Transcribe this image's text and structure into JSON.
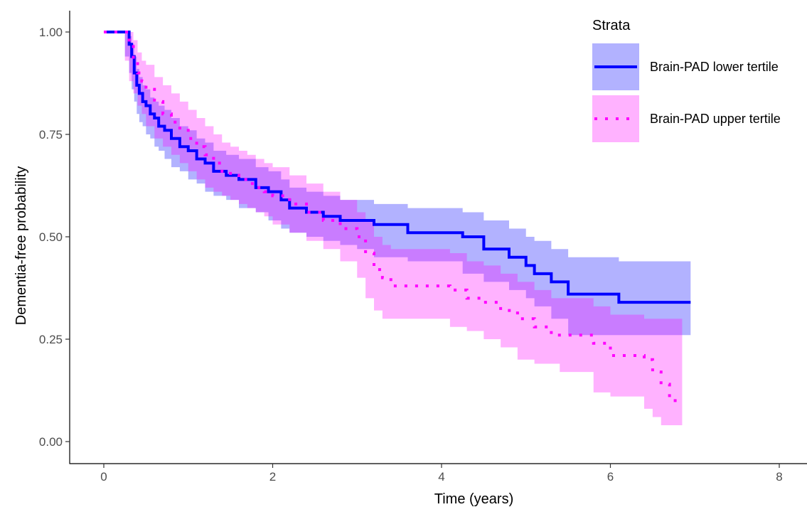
{
  "chart_data": {
    "type": "line",
    "subtype": "kaplan-meier survival curve with confidence bands",
    "xlabel": "Time (years)",
    "ylabel": "Dementia-free probability",
    "xlim": [
      0,
      8
    ],
    "ylim": [
      0,
      1
    ],
    "x_ticks": [
      0,
      2,
      4,
      6,
      8
    ],
    "x_tick_labels": [
      "0",
      "2",
      "4",
      "6",
      "8"
    ],
    "y_ticks": [
      0,
      0.25,
      0.5,
      0.75,
      1.0
    ],
    "y_tick_labels": [
      "0.00",
      "0.25",
      "0.50",
      "0.75",
      "1.00"
    ],
    "grid": false,
    "legend": {
      "title": "Strata",
      "position": "top-right"
    },
    "series": [
      {
        "name": "Brain-PAD lower tertile",
        "color": "#0000ff",
        "line_style": "solid",
        "x": [
          0,
          0.25,
          0.3,
          0.33,
          0.36,
          0.39,
          0.42,
          0.46,
          0.5,
          0.55,
          0.6,
          0.65,
          0.72,
          0.8,
          0.9,
          1.0,
          1.1,
          1.2,
          1.3,
          1.45,
          1.6,
          1.8,
          1.95,
          2.1,
          2.2,
          2.4,
          2.6,
          2.8,
          3.0,
          3.2,
          3.6,
          4.25,
          4.5,
          4.8,
          5.0,
          5.1,
          5.3,
          5.5,
          6.1,
          6.95
        ],
        "y": [
          1.0,
          1.0,
          0.97,
          0.94,
          0.9,
          0.87,
          0.85,
          0.83,
          0.82,
          0.8,
          0.79,
          0.77,
          0.76,
          0.74,
          0.72,
          0.71,
          0.69,
          0.68,
          0.66,
          0.65,
          0.64,
          0.62,
          0.61,
          0.59,
          0.57,
          0.56,
          0.55,
          0.54,
          0.54,
          0.53,
          0.51,
          0.5,
          0.47,
          0.45,
          0.43,
          0.41,
          0.39,
          0.36,
          0.34,
          0.34
        ],
        "ci_lower": [
          1.0,
          1.0,
          0.94,
          0.9,
          0.86,
          0.83,
          0.8,
          0.78,
          0.77,
          0.75,
          0.74,
          0.72,
          0.71,
          0.69,
          0.67,
          0.66,
          0.64,
          0.63,
          0.61,
          0.6,
          0.59,
          0.57,
          0.56,
          0.54,
          0.52,
          0.51,
          0.5,
          0.49,
          0.48,
          0.47,
          0.45,
          0.44,
          0.41,
          0.39,
          0.37,
          0.35,
          0.33,
          0.3,
          0.26,
          0.26
        ],
        "ci_upper": [
          1.0,
          1.0,
          0.99,
          0.97,
          0.94,
          0.91,
          0.89,
          0.87,
          0.86,
          0.84,
          0.83,
          0.82,
          0.81,
          0.79,
          0.77,
          0.76,
          0.74,
          0.73,
          0.71,
          0.7,
          0.69,
          0.67,
          0.66,
          0.64,
          0.62,
          0.61,
          0.6,
          0.59,
          0.59,
          0.58,
          0.57,
          0.56,
          0.54,
          0.52,
          0.5,
          0.49,
          0.47,
          0.45,
          0.44,
          0.44
        ]
      },
      {
        "name": "Brain-PAD upper tertile",
        "color": "#ff00ff",
        "line_style": "dotted",
        "x": [
          0,
          0.25,
          0.3,
          0.35,
          0.4,
          0.45,
          0.5,
          0.6,
          0.7,
          0.8,
          0.9,
          1.0,
          1.1,
          1.2,
          1.3,
          1.4,
          1.5,
          1.6,
          1.7,
          1.8,
          1.9,
          2.0,
          2.2,
          2.4,
          2.6,
          2.8,
          3.0,
          3.1,
          3.2,
          3.3,
          3.4,
          4.1,
          4.3,
          4.5,
          4.7,
          4.9,
          5.1,
          5.3,
          5.4,
          5.8,
          6.0,
          6.4,
          6.5,
          6.6,
          6.7,
          6.85
        ],
        "y": [
          1.0,
          1.0,
          0.97,
          0.93,
          0.9,
          0.88,
          0.86,
          0.83,
          0.8,
          0.78,
          0.76,
          0.74,
          0.72,
          0.7,
          0.68,
          0.66,
          0.65,
          0.64,
          0.63,
          0.62,
          0.61,
          0.6,
          0.58,
          0.56,
          0.54,
          0.52,
          0.5,
          0.46,
          0.42,
          0.4,
          0.38,
          0.37,
          0.35,
          0.34,
          0.32,
          0.3,
          0.28,
          0.26,
          0.26,
          0.24,
          0.21,
          0.2,
          0.17,
          0.14,
          0.1,
          0.1
        ],
        "ci_lower": [
          1.0,
          1.0,
          0.93,
          0.88,
          0.85,
          0.82,
          0.8,
          0.77,
          0.74,
          0.72,
          0.7,
          0.68,
          0.66,
          0.64,
          0.62,
          0.61,
          0.6,
          0.59,
          0.58,
          0.57,
          0.56,
          0.55,
          0.53,
          0.51,
          0.49,
          0.47,
          0.44,
          0.4,
          0.35,
          0.32,
          0.3,
          0.3,
          0.28,
          0.27,
          0.25,
          0.23,
          0.2,
          0.19,
          0.19,
          0.17,
          0.12,
          0.11,
          0.08,
          0.06,
          0.04,
          0.04
        ],
        "ci_upper": [
          1.0,
          1.0,
          1.0,
          0.98,
          0.95,
          0.93,
          0.92,
          0.89,
          0.87,
          0.85,
          0.83,
          0.81,
          0.79,
          0.77,
          0.75,
          0.73,
          0.72,
          0.71,
          0.7,
          0.69,
          0.68,
          0.67,
          0.65,
          0.63,
          0.61,
          0.59,
          0.56,
          0.54,
          0.5,
          0.48,
          0.47,
          0.46,
          0.44,
          0.43,
          0.41,
          0.39,
          0.37,
          0.35,
          0.35,
          0.33,
          0.31,
          0.3,
          0.3,
          0.3,
          0.3,
          0.3
        ]
      }
    ]
  }
}
